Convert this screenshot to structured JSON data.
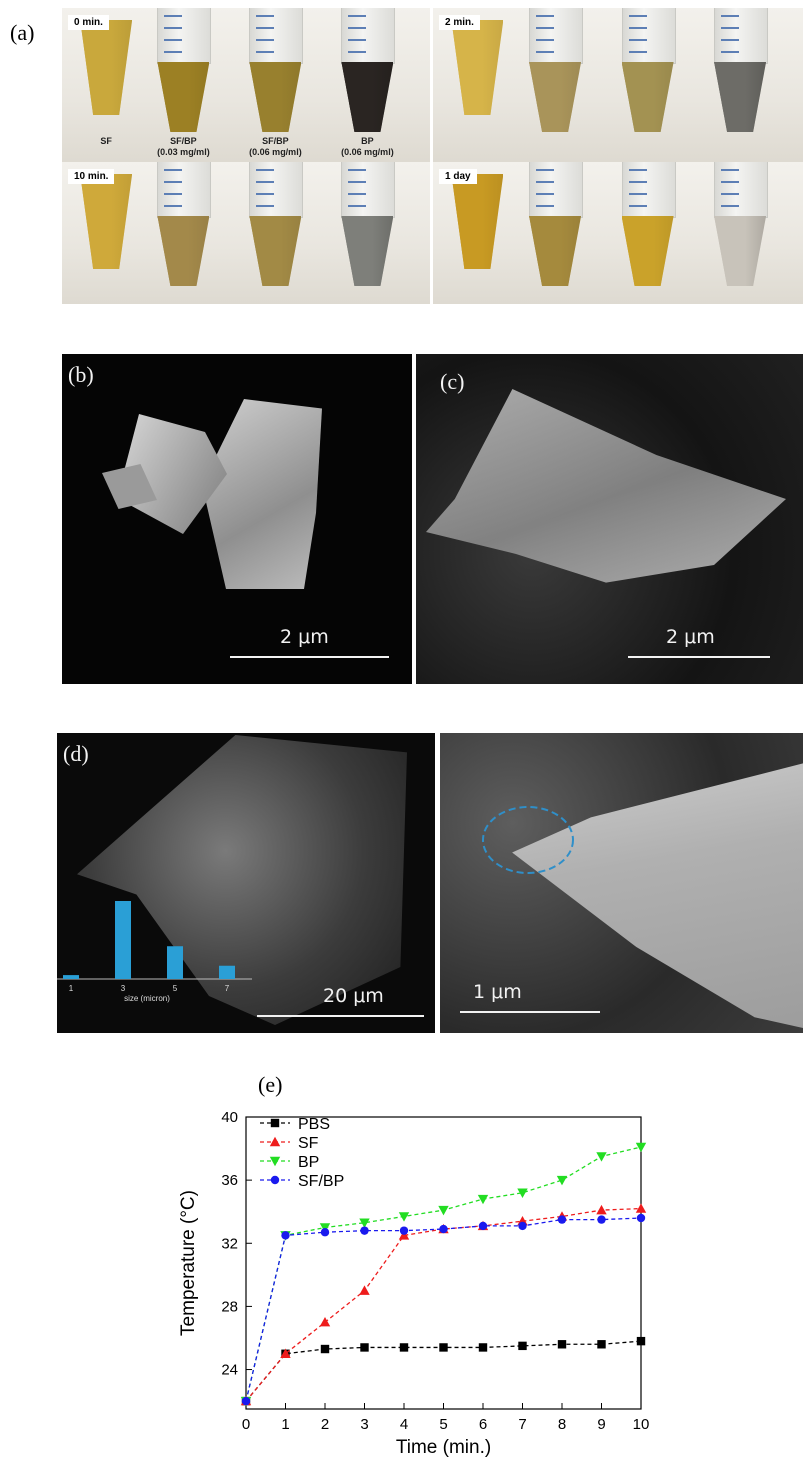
{
  "panels": {
    "a": {
      "label": "(a)",
      "frames": [
        {
          "time": "0 min.",
          "liquids": [
            "#c9a83c",
            "#9c8024",
            "#98802e",
            "#2a2522"
          ]
        },
        {
          "time": "2 min.",
          "liquids": [
            "#d6b449",
            "#a9945a",
            "#a39252",
            "#6d6c67"
          ]
        },
        {
          "time": "10 min.",
          "liquids": [
            "#cfa93a",
            "#a3894a",
            "#a28a45",
            "#7e7f7a"
          ]
        },
        {
          "time": "1 day",
          "liquids": [
            "#c89a23",
            "#a58a3d",
            "#caa22a",
            "#c8c3ba"
          ]
        }
      ],
      "tube_labels": [
        "SF",
        "SF/BP\n(0.03 mg/ml)",
        "SF/BP\n(0.06 mg/ml)",
        "BP\n(0.06 mg/ml)"
      ]
    },
    "b": {
      "label": "(b)",
      "scale": "2 μm"
    },
    "c": {
      "label": "(c)",
      "scale": "2 μm"
    },
    "d": {
      "label": "(d)",
      "scale": "20 μm",
      "inset_hist": {
        "categories": [
          "1",
          "3",
          "5",
          "7"
        ],
        "values": [
          0.05,
          1.0,
          0.42,
          0.17
        ],
        "xlabel": "size (micron)",
        "color": "#2a9fd6"
      }
    },
    "d2": {
      "scale": "1 μm"
    },
    "e": {
      "label": "(e)"
    }
  },
  "chart_data": {
    "type": "line",
    "xlabel": "Time (min.)",
    "ylabel": "Temperature (°C)",
    "xlim": [
      0,
      10
    ],
    "ylim": [
      21.5,
      40
    ],
    "xticks": [
      0,
      1,
      2,
      3,
      4,
      5,
      6,
      7,
      8,
      9,
      10
    ],
    "yticks": [
      24,
      28,
      32,
      36,
      40
    ],
    "legend_position": "top-left",
    "x": [
      0,
      1,
      2,
      3,
      4,
      5,
      6,
      7,
      8,
      9,
      10
    ],
    "series": [
      {
        "name": "PBS",
        "color": "#000000",
        "marker": "square",
        "values": [
          22,
          25,
          25.3,
          25.4,
          25.4,
          25.4,
          25.4,
          25.5,
          25.6,
          25.6,
          25.8
        ]
      },
      {
        "name": "SF",
        "color": "#ee1c1c",
        "marker": "triangle-up",
        "values": [
          22,
          25,
          27,
          29,
          32.5,
          32.9,
          33.1,
          33.4,
          33.7,
          34.1,
          34.2
        ]
      },
      {
        "name": "BP",
        "color": "#22dd22",
        "marker": "triangle-down",
        "values": [
          22,
          32.5,
          33,
          33.3,
          33.7,
          34.1,
          34.8,
          35.2,
          36,
          37.5,
          38.1
        ]
      },
      {
        "name": "SF/BP",
        "color": "#1a1aee",
        "marker": "circle",
        "values": [
          22,
          32.5,
          32.7,
          32.8,
          32.8,
          32.9,
          33.1,
          33.1,
          33.5,
          33.5,
          33.6
        ]
      }
    ]
  }
}
